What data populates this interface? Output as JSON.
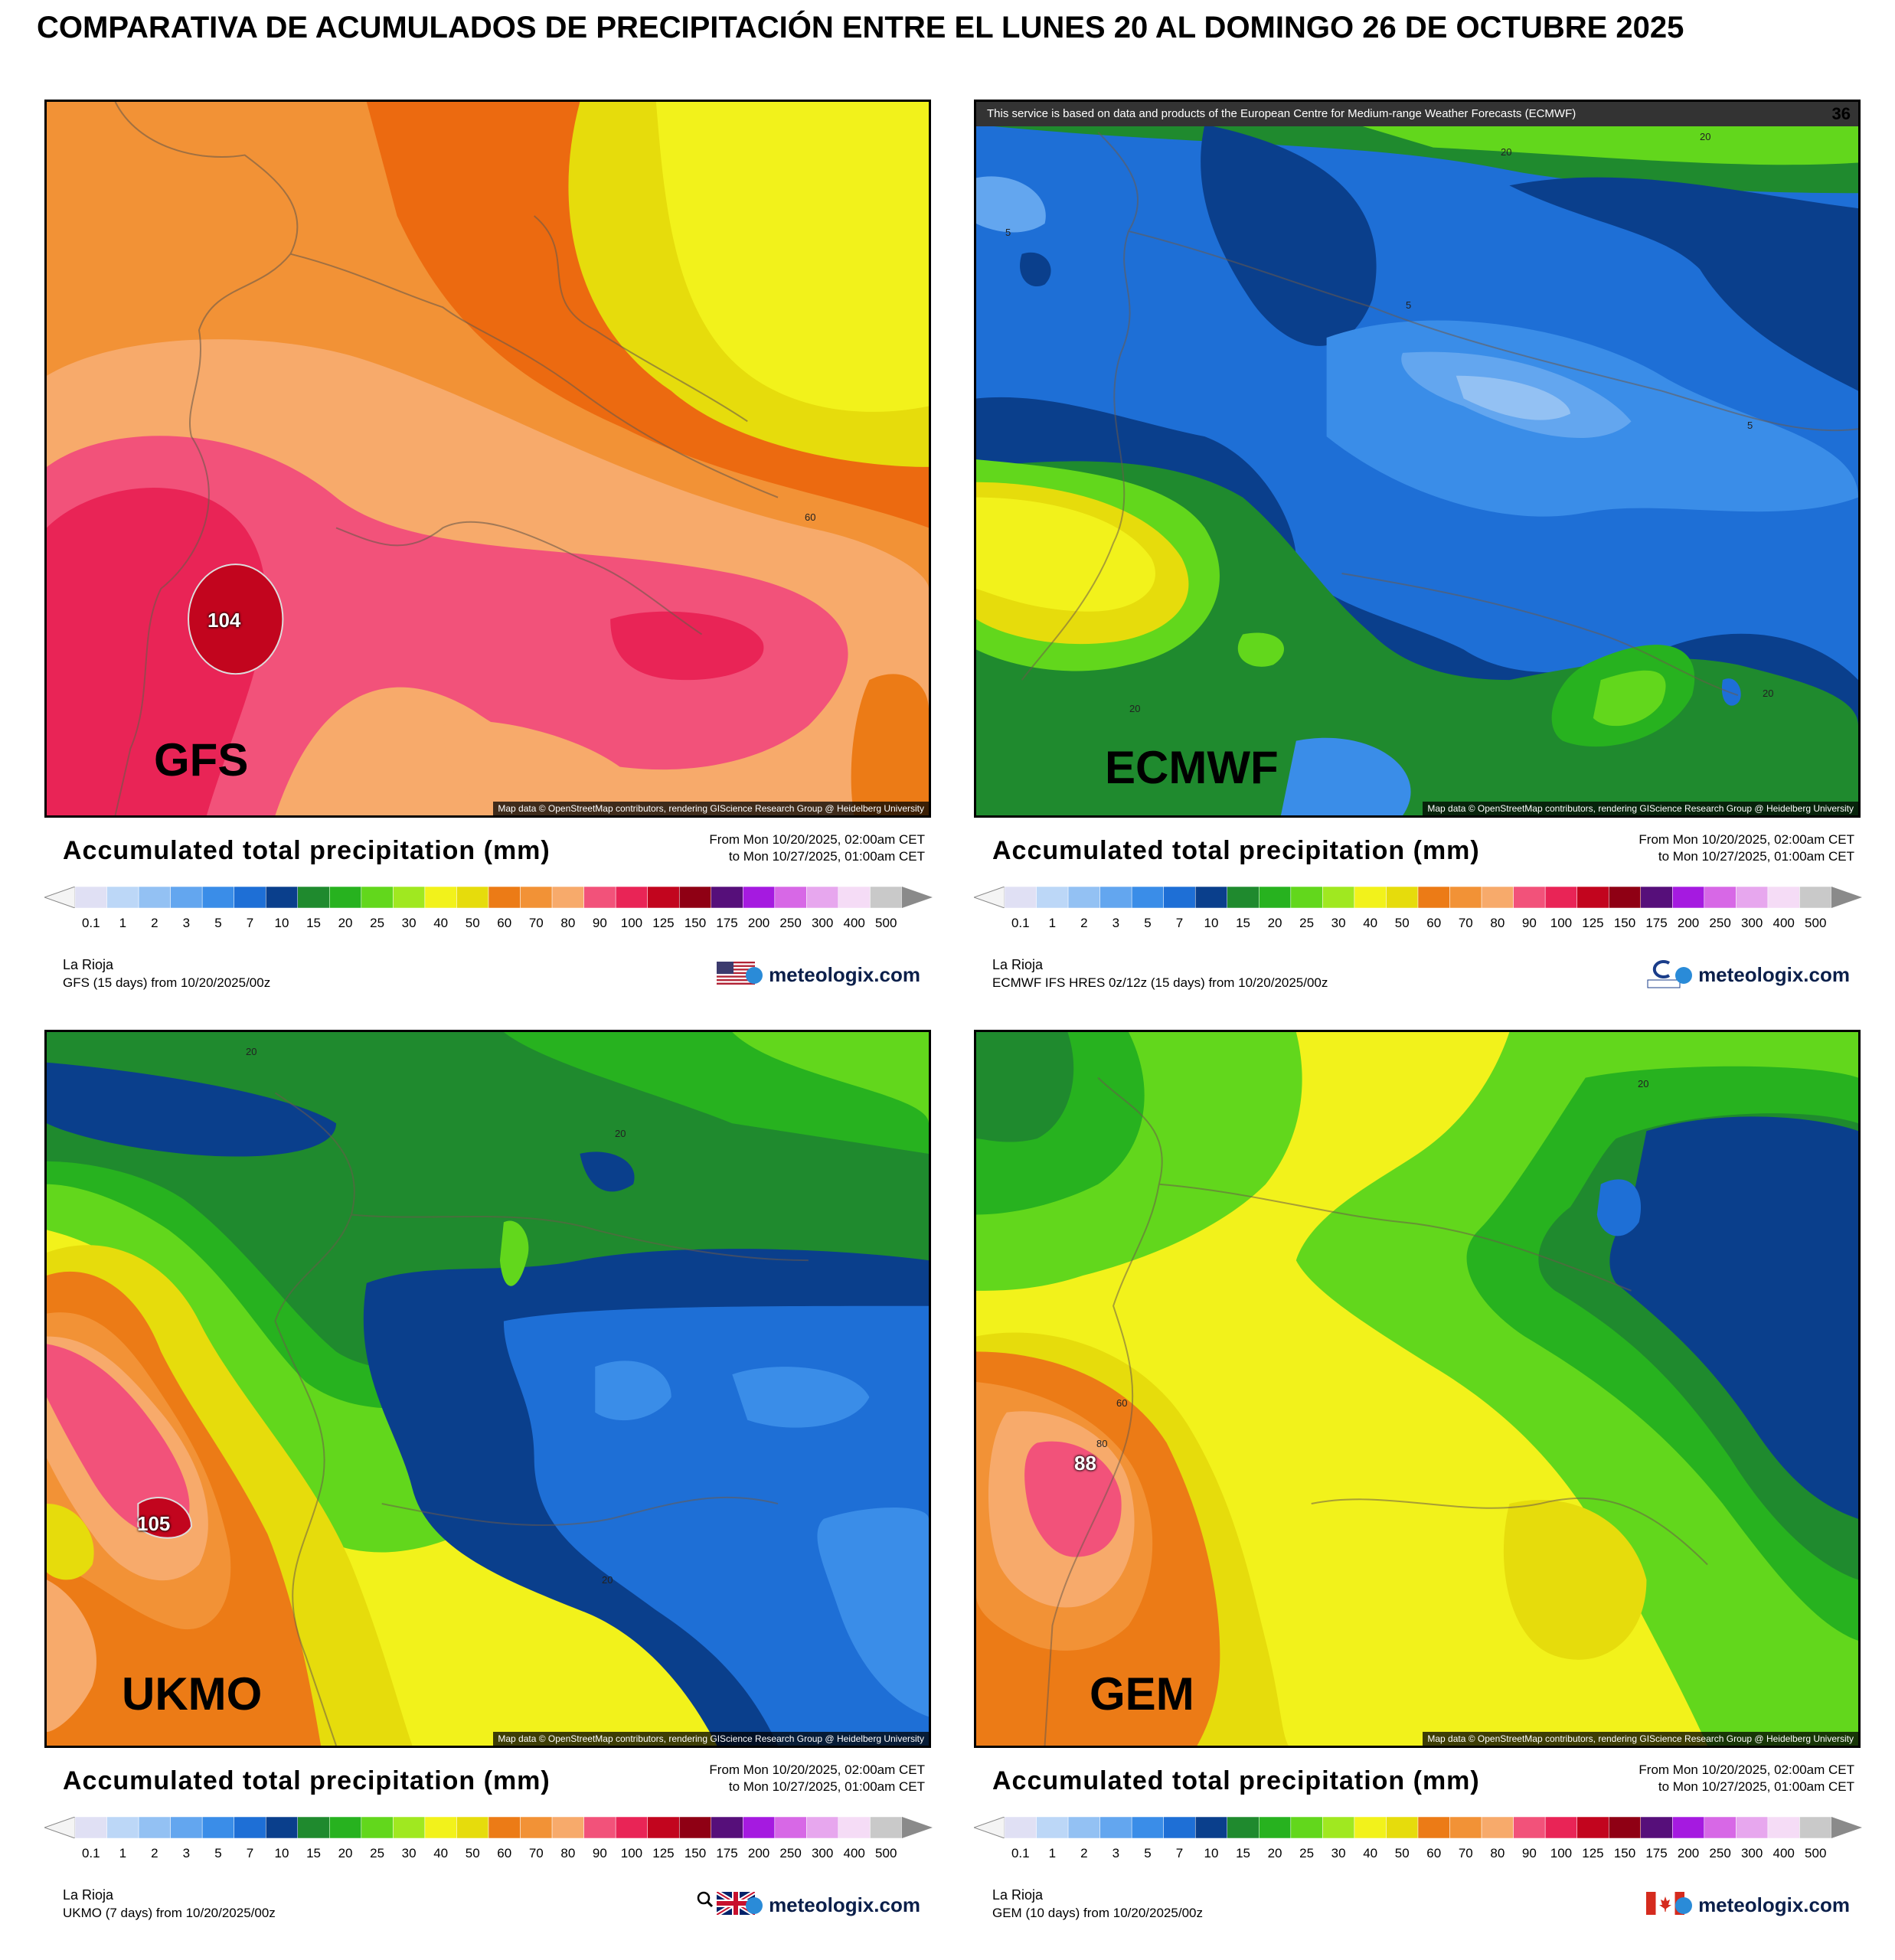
{
  "page": {
    "title": "COMPARATIVA DE ACUMULADOS DE PRECIPITACIÓN ENTRE EL LUNES 20 AL DOMINGO 26 DE OCTUBRE 2025"
  },
  "legend": {
    "title": "Accumulated total precipitation (mm)",
    "from": "From Mon 10/20/2025, 02:00am CET",
    "to": "to Mon 10/27/2025, 01:00am CET",
    "region": "La Rioja",
    "brand": "meteologix.com",
    "osm_credit": "Map data © OpenStreetMap contributors, rendering GIScience Research Group @ Heidelberg University",
    "ticks": [
      "0.1",
      "1",
      "2",
      "3",
      "5",
      "7",
      "10",
      "15",
      "20",
      "25",
      "30",
      "40",
      "50",
      "60",
      "70",
      "80",
      "90",
      "100",
      "125",
      "150",
      "175",
      "200",
      "250",
      "300",
      "400",
      "500"
    ],
    "colors": [
      "#e0e0f4",
      "#bcd7f7",
      "#93c1f3",
      "#63a6ef",
      "#3a8de8",
      "#1e6fd6",
      "#0a3f8c",
      "#1f8a2e",
      "#27b21f",
      "#62d71c",
      "#a0e820",
      "#f2f21b",
      "#e6dc0c",
      "#ec7b16",
      "#f29236",
      "#f7aa6b",
      "#f2527a",
      "#e92456",
      "#c2051e",
      "#8f0014",
      "#560f7a",
      "#a51ae0",
      "#d768e6",
      "#e7a7ee",
      "#f5dcf6",
      "#c9c9c9"
    ]
  },
  "panels": [
    {
      "model": "GFS",
      "run": "GFS (15 days) from 10/20/2025/00z",
      "peak": "104",
      "contours": [
        "60"
      ]
    },
    {
      "model": "ECMWF",
      "run": "ECMWF IFS HRES 0z/12z (15 days) from 10/20/2025/00z",
      "service_note": "This service is based on data and products of the European Centre for Medium-range Weather Forecasts (ECMWF)",
      "step": "36",
      "contours": [
        "20",
        "20",
        "5",
        "5",
        "5",
        "20",
        "20"
      ]
    },
    {
      "model": "UKMO",
      "run": "UKMO (7 days) from 10/20/2025/00z",
      "peak": "105",
      "contours": [
        "20",
        "20",
        "20"
      ]
    },
    {
      "model": "GEM",
      "run": "GEM (10 days) from 10/20/2025/00z",
      "peak": "88",
      "contours": [
        "20",
        "60",
        "80"
      ]
    }
  ]
}
